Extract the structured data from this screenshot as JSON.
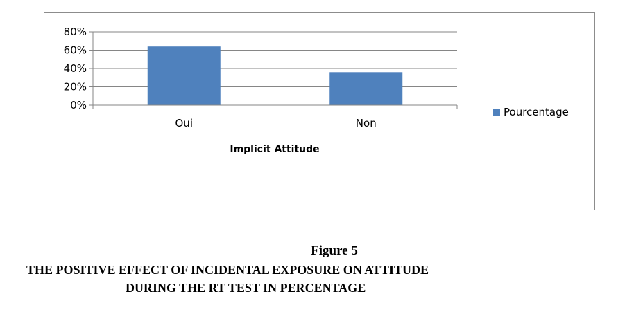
{
  "chart_data": {
    "type": "bar",
    "categories": [
      "Oui",
      "Non"
    ],
    "series": [
      {
        "name": "Pourcentage",
        "values": [
          0.64,
          0.36
        ],
        "color": "#4f81bd"
      }
    ],
    "xlabel": "Implicit Attitude",
    "ylabel": "",
    "ylim": [
      0,
      0.8
    ],
    "yticks": [
      0,
      0.2,
      0.4,
      0.6,
      0.8
    ],
    "ytick_labels": [
      "0%",
      "20%",
      "40%",
      "60%",
      "80%"
    ],
    "grid": true,
    "legend_position": "right"
  },
  "caption": {
    "figure_number": "Figure 5",
    "line1": "THE POSITIVE EFFECT OF INCIDENTAL EXPOSURE ON ATTITUDE",
    "line2": "DURING THE RT TEST IN PERCENTAGE"
  }
}
